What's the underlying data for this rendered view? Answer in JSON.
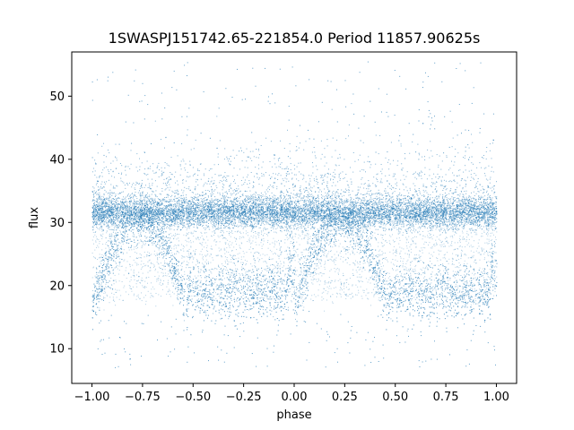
{
  "chart_data": {
    "type": "scatter",
    "title": "1SWASPJ151742.65-221854.0 Period 11857.90625s",
    "xlabel": "phase",
    "ylabel": "flux",
    "xlim": [
      -1.1,
      1.1
    ],
    "ylim": [
      4.5,
      57
    ],
    "xticks": [
      -1.0,
      -0.75,
      -0.5,
      -0.25,
      0.0,
      0.25,
      0.5,
      0.75,
      1.0
    ],
    "xtick_labels": [
      "−1.00",
      "−0.75",
      "−0.50",
      "−0.25",
      "0.00",
      "0.25",
      "0.50",
      "0.75",
      "1.00"
    ],
    "yticks": [
      10,
      20,
      30,
      40,
      50
    ],
    "ytick_labels": [
      "10",
      "20",
      "30",
      "40",
      "50"
    ],
    "grid": false,
    "color": "#1f77b4",
    "series": [
      {
        "phase_range": [
          -1.0,
          1.0
        ],
        "points": [
          [
            -1.0,
            31.6
          ],
          [
            -0.98,
            17.2
          ],
          [
            -0.95,
            24.5
          ],
          [
            -0.92,
            31.2
          ],
          [
            -0.9,
            19.5
          ],
          [
            -0.87,
            30.9
          ],
          [
            -0.85,
            27.0
          ],
          [
            -0.82,
            22.0
          ],
          [
            -0.8,
            32.1
          ],
          [
            -0.77,
            21.5
          ],
          [
            -0.75,
            31.5
          ],
          [
            -0.72,
            24.8
          ],
          [
            -0.7,
            30.4
          ],
          [
            -0.67,
            28.2
          ],
          [
            -0.65,
            31.8
          ],
          [
            -0.62,
            23.5
          ],
          [
            -0.6,
            30.7
          ],
          [
            -0.57,
            20.1
          ],
          [
            -0.55,
            32.0
          ],
          [
            -0.52,
            18.4
          ],
          [
            -0.5,
            31.3
          ],
          [
            -0.47,
            17.6
          ],
          [
            -0.45,
            30.8
          ],
          [
            -0.42,
            18.9
          ],
          [
            -0.4,
            31.9
          ],
          [
            -0.37,
            17.3
          ],
          [
            -0.35,
            29.6
          ],
          [
            -0.32,
            19.8
          ],
          [
            -0.3,
            31.4
          ],
          [
            -0.27,
            17.9
          ],
          [
            -0.25,
            32.2
          ],
          [
            -0.22,
            18.6
          ],
          [
            -0.2,
            30.6
          ],
          [
            -0.17,
            16.8
          ],
          [
            -0.15,
            31.7
          ],
          [
            -0.12,
            19.2
          ],
          [
            -0.1,
            31.0
          ],
          [
            -0.07,
            18.1
          ],
          [
            -0.05,
            32.4
          ],
          [
            -0.02,
            20.7
          ],
          [
            0.0,
            31.2
          ],
          [
            0.03,
            22.9
          ],
          [
            0.05,
            30.5
          ],
          [
            0.08,
            25.3
          ],
          [
            0.1,
            31.9
          ],
          [
            0.13,
            27.8
          ],
          [
            0.15,
            31.1
          ],
          [
            0.18,
            29.6
          ],
          [
            0.2,
            32.3
          ],
          [
            0.23,
            30.2
          ],
          [
            0.25,
            31.0
          ],
          [
            0.28,
            29.1
          ],
          [
            0.3,
            31.8
          ],
          [
            0.33,
            26.4
          ],
          [
            0.35,
            30.3
          ],
          [
            0.38,
            23.8
          ],
          [
            0.4,
            31.6
          ],
          [
            0.43,
            20.4
          ],
          [
            0.45,
            31.1
          ],
          [
            0.48,
            18.2
          ],
          [
            0.5,
            32.0
          ],
          [
            0.53,
            17.4
          ],
          [
            0.55,
            30.9
          ],
          [
            0.58,
            19.1
          ],
          [
            0.6,
            31.5
          ],
          [
            0.63,
            17.8
          ],
          [
            0.65,
            29.8
          ],
          [
            0.68,
            18.7
          ],
          [
            0.7,
            31.9
          ],
          [
            0.73,
            17.2
          ],
          [
            0.75,
            30.6
          ],
          [
            0.78,
            19.9
          ],
          [
            0.8,
            32.1
          ],
          [
            0.83,
            18.3
          ],
          [
            0.85,
            31.3
          ],
          [
            0.88,
            17.5
          ],
          [
            0.9,
            30.8
          ],
          [
            0.93,
            19.4
          ],
          [
            0.95,
            31.7
          ],
          [
            0.98,
            18.0
          ],
          [
            1.0,
            31.4
          ]
        ]
      }
    ]
  }
}
